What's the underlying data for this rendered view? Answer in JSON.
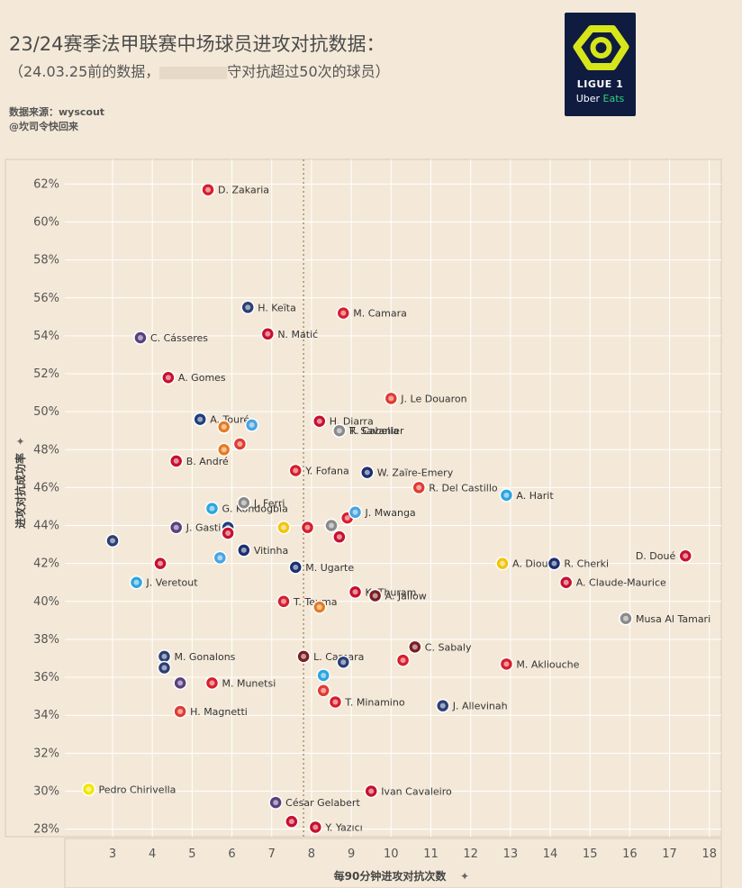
{
  "header": {
    "title": "23/24赛季法甲联赛中场球员进攻对抗数据：",
    "subtitle": "（24.03.25前的数据，",
    "subtitle_end": "守对抗超过50次的球员）",
    "source_line1": "数据来源：wyscout",
    "source_line2": "@坎司令快回来"
  },
  "logo": {
    "line1": "LIGUE 1",
    "uber": "Uber",
    "eats": "Eats"
  },
  "chart_data": {
    "type": "scatter",
    "xlabel": "每90分钟进攻对抗次数",
    "ylabel": "进攻对抗成功率",
    "x_ticks": [
      "3",
      "4",
      "5",
      "6",
      "7",
      "8",
      "9",
      "10",
      "11",
      "12",
      "13",
      "14",
      "15",
      "16",
      "17",
      "18"
    ],
    "y_ticks": [
      "28%",
      "30%",
      "32%",
      "34%",
      "36%",
      "38%",
      "40%",
      "42%",
      "44%",
      "46%",
      "48%",
      "50%",
      "52%",
      "54%",
      "56%",
      "58%",
      "60%",
      "62%"
    ],
    "xlim": [
      1.8,
      18.3
    ],
    "ylim": [
      27.6,
      63.3
    ],
    "reference_line_x": 7.8,
    "points": [
      {
        "name": "D. Zakaria",
        "x": 5.4,
        "y": 61.7,
        "color": "#d81e2c"
      },
      {
        "name": "H. Keïta",
        "x": 6.4,
        "y": 55.5,
        "color": "#2c3e74"
      },
      {
        "name": "M. Camara",
        "x": 8.8,
        "y": 55.2,
        "color": "#d81e2c"
      },
      {
        "name": "C. Cásseres",
        "x": 3.7,
        "y": 53.9,
        "color": "#5a3f7d"
      },
      {
        "name": "N. Matić",
        "x": 6.9,
        "y": 54.1,
        "color": "#c8102e"
      },
      {
        "name": "A. Gomes",
        "x": 4.4,
        "y": 51.8,
        "color": "#c8102e"
      },
      {
        "name": "J. Le Douaron",
        "x": 10.0,
        "y": 50.7,
        "color": "#e03c31"
      },
      {
        "name": "A. Touré",
        "x": 5.2,
        "y": 49.6,
        "color": "#1f3d7a"
      },
      {
        "name": "",
        "x": 5.8,
        "y": 49.2,
        "color": "#e57b22"
      },
      {
        "name": "",
        "x": 6.5,
        "y": 49.3,
        "color": "#4aa3df"
      },
      {
        "name": "H. Diarra",
        "x": 8.2,
        "y": 49.5,
        "color": "#c8102e"
      },
      {
        "name": "R. Cabella",
        "x": 8.7,
        "y": 49.0,
        "color": "#8a8a8a"
      },
      {
        "name": "T. Savanier",
        "x": 8.7,
        "y": 49.0,
        "color": "#8a8a8a"
      },
      {
        "name": "B. André",
        "x": 4.6,
        "y": 47.4,
        "color": "#c8102e"
      },
      {
        "name": "",
        "x": 5.8,
        "y": 48.0,
        "color": "#e57b22"
      },
      {
        "name": "",
        "x": 6.2,
        "y": 48.3,
        "color": "#e03c31"
      },
      {
        "name": "Y. Fofana",
        "x": 7.6,
        "y": 46.9,
        "color": "#d81e2c"
      },
      {
        "name": "W. Zaïre-Emery",
        "x": 9.4,
        "y": 46.8,
        "color": "#1b2f6e"
      },
      {
        "name": "R. Del Castillo",
        "x": 10.7,
        "y": 46.0,
        "color": "#e03c31"
      },
      {
        "name": "A. Harit",
        "x": 12.9,
        "y": 45.6,
        "color": "#2ba6de"
      },
      {
        "name": "G. Kondogbia",
        "x": 5.5,
        "y": 44.9,
        "color": "#2ba6de"
      },
      {
        "name": "J. Ferri",
        "x": 6.3,
        "y": 45.2,
        "color": "#8a8a8a"
      },
      {
        "name": "J. Gastien",
        "x": 4.6,
        "y": 43.9,
        "color": "#5a3f7d"
      },
      {
        "name": "",
        "x": 5.9,
        "y": 43.9,
        "color": "#1f3d7a"
      },
      {
        "name": "",
        "x": 7.3,
        "y": 43.9,
        "color": "#f2c40f"
      },
      {
        "name": "",
        "x": 7.9,
        "y": 43.9,
        "color": "#d81e2c"
      },
      {
        "name": "",
        "x": 8.5,
        "y": 44.0,
        "color": "#8a8a8a"
      },
      {
        "name": "",
        "x": 8.9,
        "y": 44.4,
        "color": "#d81e2c"
      },
      {
        "name": "J. Mwanga",
        "x": 9.1,
        "y": 44.7,
        "color": "#4aa3df"
      },
      {
        "name": "",
        "x": 5.9,
        "y": 43.6,
        "color": "#c8102e"
      },
      {
        "name": "",
        "x": 8.7,
        "y": 43.4,
        "color": "#c8102e"
      },
      {
        "name": "",
        "x": 3.0,
        "y": 43.2,
        "color": "#2c3e74"
      },
      {
        "name": "Vitinha",
        "x": 6.3,
        "y": 42.7,
        "color": "#1b2f6e"
      },
      {
        "name": "",
        "x": 5.7,
        "y": 42.3,
        "color": "#4aa3df"
      },
      {
        "name": "",
        "x": 4.2,
        "y": 42.0,
        "color": "#c8102e"
      },
      {
        "name": "M. Ugarte",
        "x": 7.6,
        "y": 41.8,
        "color": "#1b2f6e"
      },
      {
        "name": "A. Diouf",
        "x": 12.8,
        "y": 42.0,
        "color": "#f2c40f"
      },
      {
        "name": "R. Cherki",
        "x": 14.1,
        "y": 42.0,
        "color": "#1b2f6e"
      },
      {
        "name": "D. Doué",
        "x": 17.4,
        "y": 42.4,
        "color": "#c8102e"
      },
      {
        "name": "A. Claude-Maurice",
        "x": 14.4,
        "y": 41.0,
        "color": "#c8102e"
      },
      {
        "name": "J. Veretout",
        "x": 3.6,
        "y": 41.0,
        "color": "#2ba6de"
      },
      {
        "name": "T. Teuma",
        "x": 7.3,
        "y": 40.0,
        "color": "#d81e2c"
      },
      {
        "name": "",
        "x": 8.2,
        "y": 39.7,
        "color": "#e57b22"
      },
      {
        "name": "K. Thuram",
        "x": 9.1,
        "y": 40.5,
        "color": "#c8102e"
      },
      {
        "name": "A. Jallow",
        "x": 9.6,
        "y": 40.3,
        "color": "#7a1e22"
      },
      {
        "name": "Musa Al Tamari",
        "x": 15.9,
        "y": 39.1,
        "color": "#8a8a8a"
      },
      {
        "name": "M. Gonalons",
        "x": 4.3,
        "y": 37.1,
        "color": "#2c3e74"
      },
      {
        "name": "",
        "x": 4.3,
        "y": 36.5,
        "color": "#2c3e74"
      },
      {
        "name": "M. Munetsi",
        "x": 5.5,
        "y": 35.7,
        "color": "#d81e2c"
      },
      {
        "name": "",
        "x": 4.7,
        "y": 35.7,
        "color": "#5a3f7d"
      },
      {
        "name": "L. Camara",
        "x": 7.8,
        "y": 37.1,
        "color": "#7a1e22"
      },
      {
        "name": "",
        "x": 8.8,
        "y": 36.8,
        "color": "#2c3e74"
      },
      {
        "name": "",
        "x": 8.3,
        "y": 36.1,
        "color": "#2ba6de"
      },
      {
        "name": "C. Sabaly",
        "x": 10.6,
        "y": 37.6,
        "color": "#7a1e22"
      },
      {
        "name": "",
        "x": 10.3,
        "y": 36.9,
        "color": "#d81e2c"
      },
      {
        "name": "M. Akliouche",
        "x": 12.9,
        "y": 36.7,
        "color": "#d81e2c"
      },
      {
        "name": "T. Minamino",
        "x": 8.6,
        "y": 34.7,
        "color": "#d81e2c"
      },
      {
        "name": "",
        "x": 8.3,
        "y": 35.3,
        "color": "#e03c31"
      },
      {
        "name": "H. Magnetti",
        "x": 4.7,
        "y": 34.2,
        "color": "#e03c31"
      },
      {
        "name": "J. Allevinah",
        "x": 11.3,
        "y": 34.5,
        "color": "#2c3e74"
      },
      {
        "name": "Pedro Chirivella",
        "x": 2.4,
        "y": 30.1,
        "color": "#f2e600"
      },
      {
        "name": "César Gelabert",
        "x": 7.1,
        "y": 29.4,
        "color": "#5a3f7d"
      },
      {
        "name": "",
        "x": 7.5,
        "y": 28.4,
        "color": "#c8102e"
      },
      {
        "name": "Ivan Cavaleiro",
        "x": 9.5,
        "y": 30.0,
        "color": "#c8102e"
      },
      {
        "name": "Y. Yazıcı",
        "x": 8.1,
        "y": 28.1,
        "color": "#c8102e"
      }
    ]
  }
}
